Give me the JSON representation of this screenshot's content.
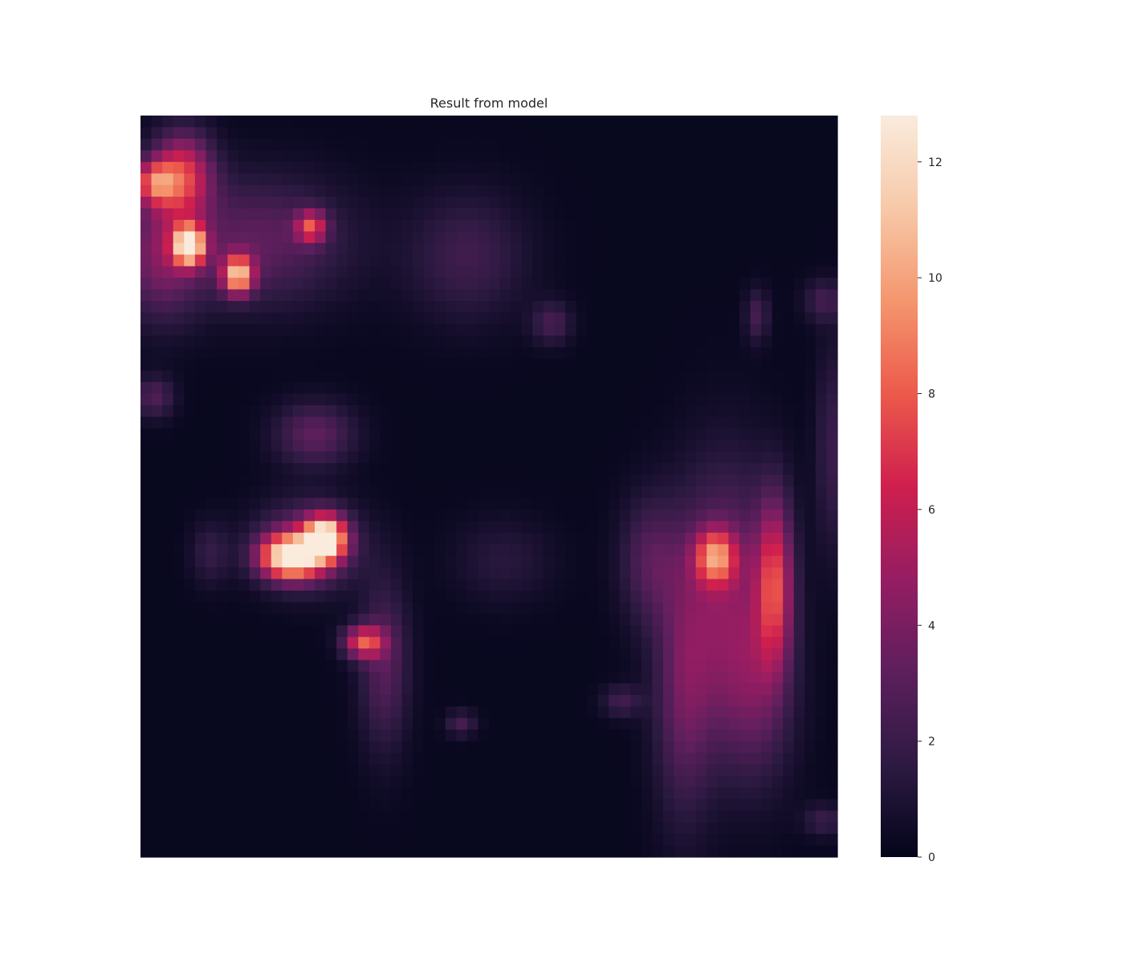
{
  "chart_data": {
    "type": "heatmap",
    "title": "Result from model",
    "xlabel": "",
    "ylabel": "",
    "grid": false,
    "axes_ticks": false,
    "colormap": "rocket",
    "colormap_stops": [
      "#03051a",
      "#2d1a42",
      "#5d1f5d",
      "#961d62",
      "#cf1f4e",
      "#ec5a4b",
      "#f4966e",
      "#f7c9a8",
      "#faebdd"
    ],
    "value_range": [
      0,
      12.8
    ],
    "colorbar": {
      "ticks": [
        0,
        2,
        4,
        6,
        8,
        10,
        12
      ],
      "tick_labels": [
        "0",
        "2",
        "4",
        "6",
        "8",
        "10",
        "12"
      ]
    },
    "grid_resolution": [
      64,
      64
    ],
    "background_value": 0.2,
    "hotspots_note": "",
    "blobs": [
      {
        "cx": 0.06,
        "cy": 0.08,
        "sx": 0.03,
        "sy": 0.04,
        "v": 6.5
      },
      {
        "cx": 0.02,
        "cy": 0.09,
        "sx": 0.02,
        "sy": 0.02,
        "v": 6.0
      },
      {
        "cx": 0.07,
        "cy": 0.175,
        "sx": 0.015,
        "sy": 0.018,
        "v": 12.0
      },
      {
        "cx": 0.14,
        "cy": 0.215,
        "sx": 0.015,
        "sy": 0.018,
        "v": 9.5
      },
      {
        "cx": 0.245,
        "cy": 0.15,
        "sx": 0.015,
        "sy": 0.015,
        "v": 6.0
      },
      {
        "cx": 0.17,
        "cy": 0.17,
        "sx": 0.09,
        "sy": 0.06,
        "v": 3.0
      },
      {
        "cx": 0.03,
        "cy": 0.19,
        "sx": 0.04,
        "sy": 0.06,
        "v": 3.5
      },
      {
        "cx": 0.215,
        "cy": 0.595,
        "sx": 0.03,
        "sy": 0.02,
        "v": 11.5
      },
      {
        "cx": 0.265,
        "cy": 0.57,
        "sx": 0.02,
        "sy": 0.02,
        "v": 12.2
      },
      {
        "cx": 0.24,
        "cy": 0.58,
        "sx": 0.05,
        "sy": 0.04,
        "v": 4.0
      },
      {
        "cx": 0.32,
        "cy": 0.71,
        "sx": 0.02,
        "sy": 0.015,
        "v": 6.8
      },
      {
        "cx": 0.35,
        "cy": 0.74,
        "sx": 0.025,
        "sy": 0.08,
        "v": 2.8
      },
      {
        "cx": 0.25,
        "cy": 0.43,
        "sx": 0.04,
        "sy": 0.03,
        "v": 3.0
      },
      {
        "cx": 0.825,
        "cy": 0.595,
        "sx": 0.02,
        "sy": 0.025,
        "v": 6.8
      },
      {
        "cx": 0.91,
        "cy": 0.63,
        "sx": 0.018,
        "sy": 0.08,
        "v": 6.0
      },
      {
        "cx": 0.84,
        "cy": 0.64,
        "sx": 0.05,
        "sy": 0.12,
        "v": 3.6
      },
      {
        "cx": 0.78,
        "cy": 0.78,
        "sx": 0.03,
        "sy": 0.12,
        "v": 3.0
      },
      {
        "cx": 0.88,
        "cy": 0.78,
        "sx": 0.04,
        "sy": 0.09,
        "v": 2.6
      },
      {
        "cx": 0.73,
        "cy": 0.6,
        "sx": 0.03,
        "sy": 0.06,
        "v": 2.5
      },
      {
        "cx": 0.47,
        "cy": 0.19,
        "sx": 0.06,
        "sy": 0.06,
        "v": 2.0
      },
      {
        "cx": 0.59,
        "cy": 0.28,
        "sx": 0.02,
        "sy": 0.02,
        "v": 2.2
      },
      {
        "cx": 0.885,
        "cy": 0.27,
        "sx": 0.012,
        "sy": 0.025,
        "v": 2.2
      },
      {
        "cx": 0.98,
        "cy": 0.25,
        "sx": 0.02,
        "sy": 0.02,
        "v": 2.0
      },
      {
        "cx": 0.99,
        "cy": 0.45,
        "sx": 0.015,
        "sy": 0.1,
        "v": 1.8
      },
      {
        "cx": 0.02,
        "cy": 0.38,
        "sx": 0.02,
        "sy": 0.02,
        "v": 2.5
      },
      {
        "cx": 0.69,
        "cy": 0.79,
        "sx": 0.02,
        "sy": 0.015,
        "v": 2.0
      },
      {
        "cx": 0.46,
        "cy": 0.82,
        "sx": 0.015,
        "sy": 0.012,
        "v": 2.2
      },
      {
        "cx": 0.1,
        "cy": 0.59,
        "sx": 0.02,
        "sy": 0.03,
        "v": 1.6
      },
      {
        "cx": 0.52,
        "cy": 0.6,
        "sx": 0.05,
        "sy": 0.04,
        "v": 1.2
      },
      {
        "cx": 0.98,
        "cy": 0.95,
        "sx": 0.02,
        "sy": 0.015,
        "v": 1.8
      }
    ]
  }
}
